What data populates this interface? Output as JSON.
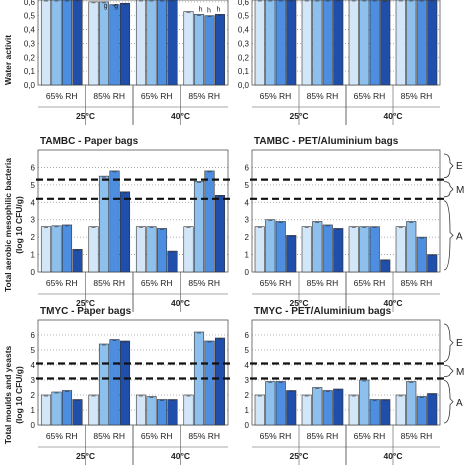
{
  "colors": [
    "#d3e6f8",
    "#8ec0ee",
    "#4e8ee0",
    "#1f4faa"
  ],
  "y_labels": {
    "aw": "Water activit",
    "tamb": [
      "Total aerobic mesophilic bacteria",
      "(log 10 CFU/g)"
    ],
    "tmyc": [
      "Total moulds and yeasts",
      "(log 10 CFU/g)"
    ]
  },
  "categories": [
    "65% RH",
    "85% RH",
    "65% RH",
    "85% RH"
  ],
  "groups": [
    "25°C",
    "40°C"
  ],
  "zone_labels": [
    "E",
    "M",
    "A"
  ],
  "chart_data": [
    {
      "type": "bar",
      "row": "aw",
      "title": "",
      "ylim": [
        0,
        0.7
      ],
      "yticks": [
        "0,0",
        "0,1",
        "0,2",
        "0,3",
        "0,4",
        "0,5",
        "0,6"
      ],
      "ytick_values": [
        0,
        0.1,
        0.2,
        0.3,
        0.4,
        0.5,
        0.6
      ],
      "values": [
        [
          0.64,
          0.64,
          0.64,
          0.64
        ],
        [
          0.6,
          0.6,
          0.58,
          0.59
        ],
        [
          0.64,
          0.64,
          0.64,
          0.64
        ],
        [
          0.53,
          0.51,
          0.5,
          0.51
        ]
      ],
      "annotations": [
        "g",
        "g",
        "h",
        "h",
        "h"
      ],
      "grid": true
    },
    {
      "type": "bar",
      "row": "aw",
      "title": "",
      "ylim": [
        0,
        0.7
      ],
      "yticks": [
        "0,0",
        "0,1",
        "0,2",
        "0,3",
        "0,4",
        "0,5",
        "0,6"
      ],
      "ytick_values": [
        0,
        0.1,
        0.2,
        0.3,
        0.4,
        0.5,
        0.6
      ],
      "values": [
        [
          0.64,
          0.64,
          0.64,
          0.64
        ],
        [
          0.64,
          0.63,
          0.63,
          0.64
        ],
        [
          0.64,
          0.63,
          0.62,
          0.61
        ],
        [
          0.64,
          0.64,
          0.64,
          0.64
        ]
      ],
      "grid": true
    },
    {
      "type": "bar",
      "row": "tamb",
      "title": "TAMBC - Paper bags",
      "ylim": [
        0,
        7
      ],
      "yticks": [
        "0",
        "1",
        "2",
        "3",
        "4",
        "5",
        "6"
      ],
      "ytick_values": [
        0,
        1,
        2,
        3,
        4,
        5,
        6
      ],
      "values": [
        [
          2.6,
          2.65,
          2.7,
          1.3
        ],
        [
          2.6,
          5.5,
          5.8,
          4.6
        ],
        [
          2.6,
          2.6,
          2.5,
          1.2
        ],
        [
          2.6,
          5.2,
          5.8,
          4.4
        ]
      ],
      "thresholds": [
        5.3,
        4.2
      ],
      "grid": true
    },
    {
      "type": "bar",
      "row": "tamb",
      "title": "TAMBC - PET/Aluminium bags",
      "ylim": [
        0,
        7
      ],
      "yticks": [
        "0",
        "1",
        "2",
        "3",
        "4",
        "5",
        "6"
      ],
      "ytick_values": [
        0,
        1,
        2,
        3,
        4,
        5,
        6
      ],
      "values": [
        [
          2.6,
          3.0,
          2.9,
          2.1
        ],
        [
          2.6,
          2.9,
          2.7,
          2.5
        ],
        [
          2.6,
          2.6,
          2.6,
          0.7
        ],
        [
          2.6,
          2.9,
          2.0,
          1.0
        ]
      ],
      "thresholds": [
        5.3,
        4.2
      ],
      "grid": true
    },
    {
      "type": "bar",
      "row": "tmyc",
      "title": "TMYC - Paper bags",
      "ylim": [
        0,
        7
      ],
      "yticks": [
        "0",
        "1",
        "2",
        "3",
        "4",
        "5",
        "6"
      ],
      "ytick_values": [
        0,
        1,
        2,
        3,
        4,
        5,
        6
      ],
      "values": [
        [
          2.0,
          2.2,
          2.3,
          1.7
        ],
        [
          2.0,
          5.4,
          5.7,
          5.6
        ],
        [
          2.0,
          1.9,
          1.7,
          1.7
        ],
        [
          2.0,
          6.2,
          5.6,
          5.8
        ]
      ],
      "thresholds": [
        4.1,
        3.1
      ],
      "grid": true
    },
    {
      "type": "bar",
      "row": "tmyc",
      "title": "TMYC - PET/Aluminium bags",
      "ylim": [
        0,
        7
      ],
      "yticks": [
        "0",
        "1",
        "2",
        "3",
        "4",
        "5",
        "6"
      ],
      "ytick_values": [
        0,
        1,
        2,
        3,
        4,
        5,
        6
      ],
      "values": [
        [
          2.0,
          2.9,
          2.9,
          2.3
        ],
        [
          2.0,
          2.5,
          2.3,
          2.4
        ],
        [
          2.0,
          3.0,
          1.7,
          1.7
        ],
        [
          2.0,
          2.9,
          1.9,
          2.1
        ]
      ],
      "thresholds": [
        4.1,
        3.1
      ],
      "grid": true
    }
  ]
}
